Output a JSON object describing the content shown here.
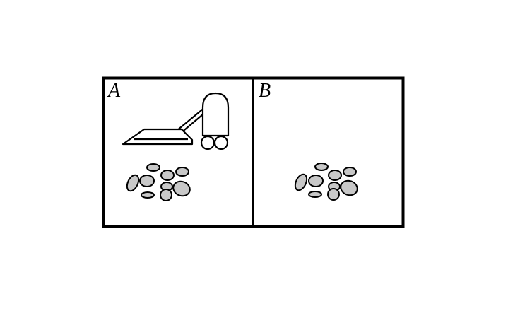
{
  "rooms": [
    {
      "label": "A",
      "has_vacuum": true,
      "has_dirt": true
    },
    {
      "label": "B",
      "has_vacuum": false,
      "has_dirt": true
    }
  ],
  "colors": {
    "background": "#ffffff",
    "outline": "#000000",
    "dirt_fill": "#c8c8c8"
  },
  "icons": {
    "vacuum": "vacuum-cleaner-icon",
    "dirt": "dirt-pile-icon"
  }
}
